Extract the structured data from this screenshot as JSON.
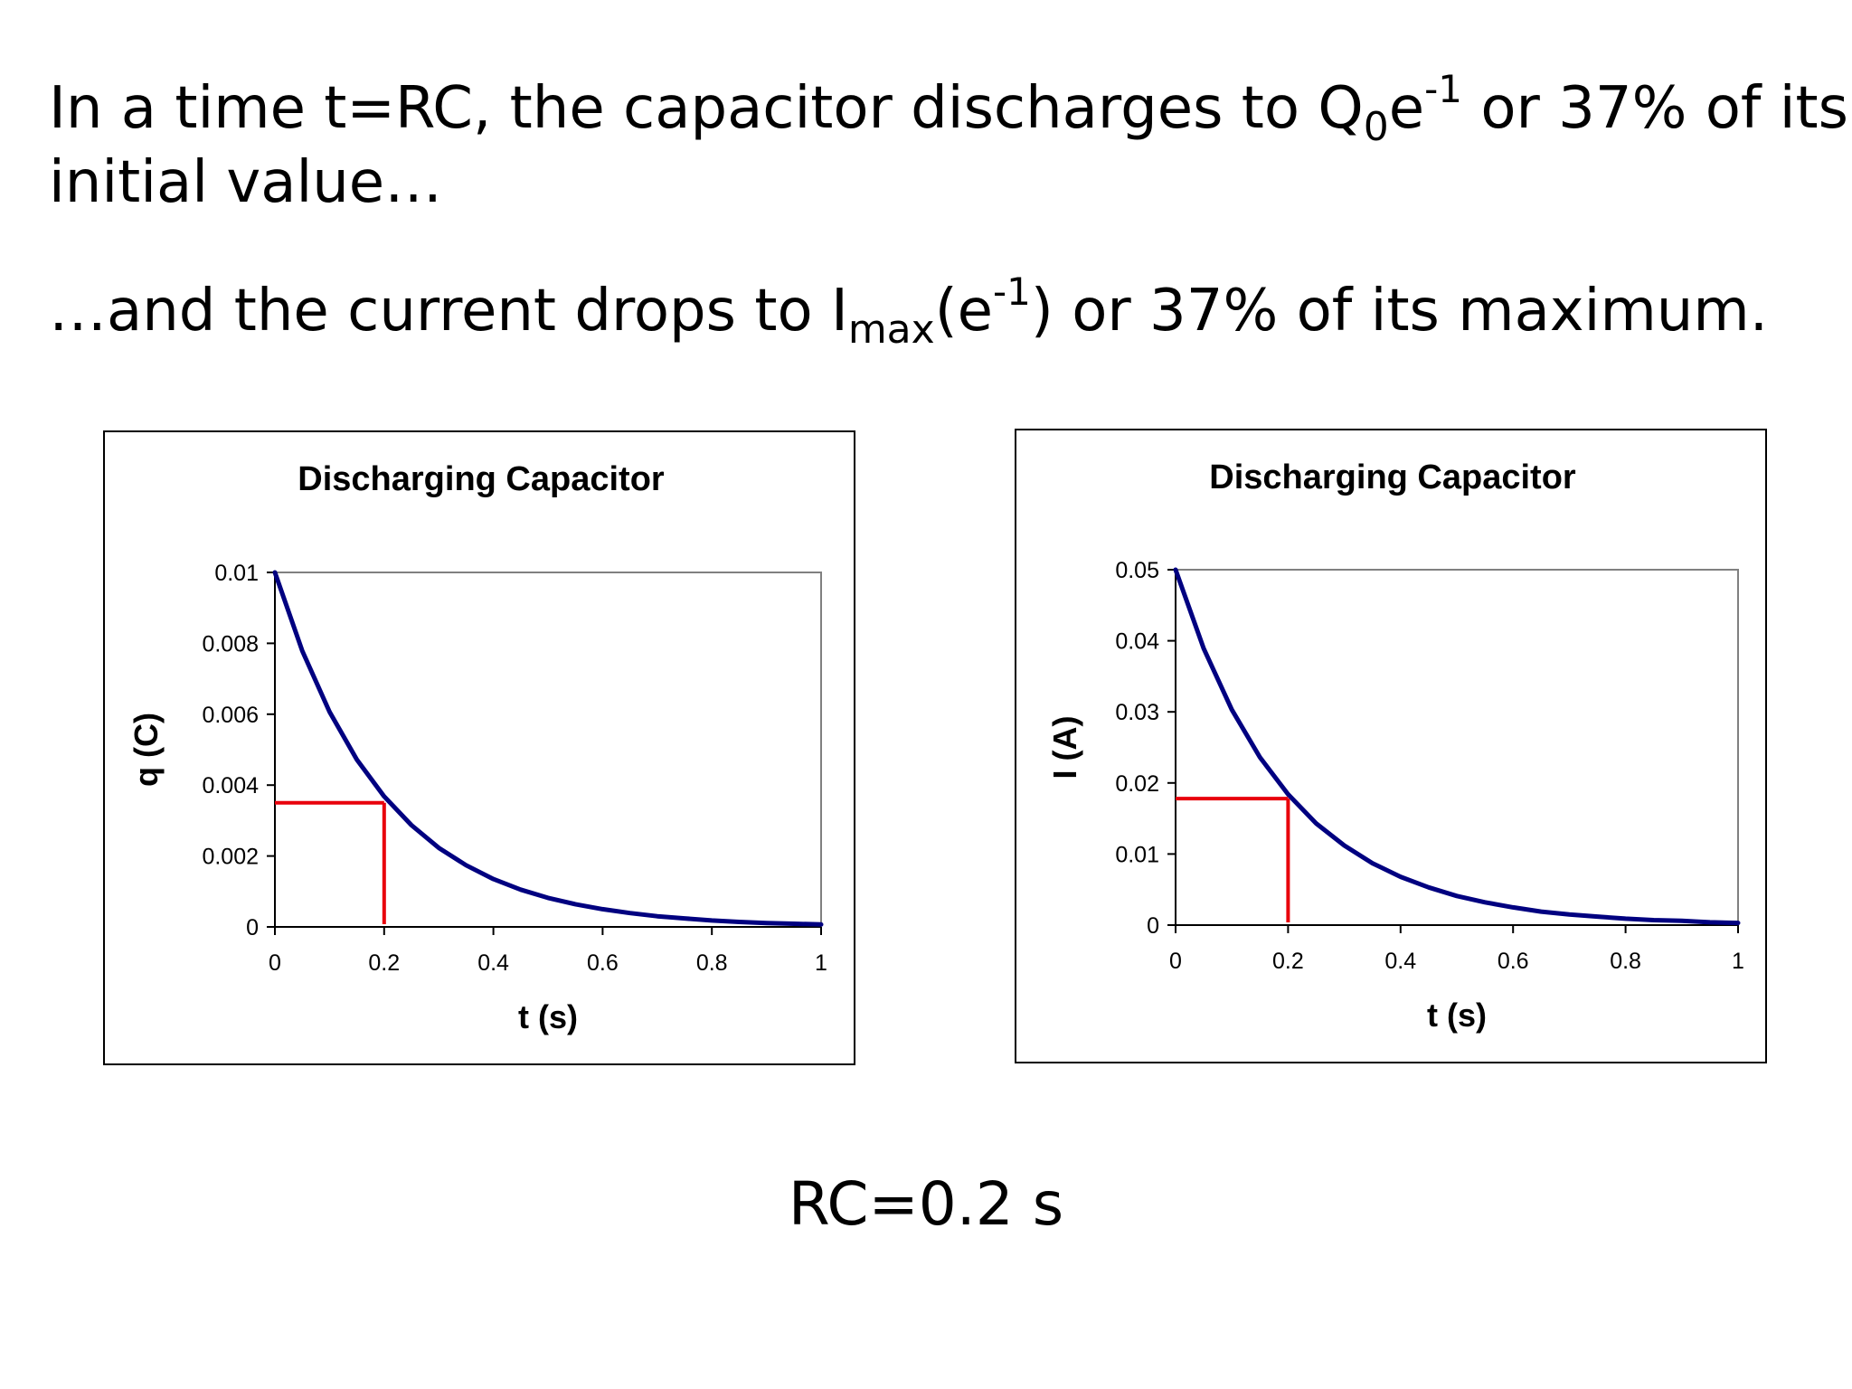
{
  "heading": {
    "line1_a": "In a time t=RC, the capacitor discharges to Q",
    "line1_sub": "0",
    "line1_b": "e",
    "line1_sup": "-1",
    "line1_c": " or 37% of its",
    "line1_d": "initial value…",
    "line2_a": "…and the current drops to I",
    "line2_sub": "max",
    "line2_b": "(e",
    "line2_sup": "-1",
    "line2_c": ") or 37% of its maximum."
  },
  "footer": {
    "rc_text": "RC=0.2 s"
  },
  "colors": {
    "curve": "#000080",
    "marker": "#e8000b",
    "plot_border": "#808080",
    "frame": "#000000"
  },
  "chart_data": [
    {
      "type": "line",
      "title": "Discharging Capacitor",
      "xlabel": "t (s)",
      "ylabel": "q (C)",
      "xlim": [
        0,
        1
      ],
      "ylim": [
        0,
        0.01
      ],
      "xticks": [
        0,
        0.2,
        0.4,
        0.6,
        0.8,
        1
      ],
      "xtick_labels": [
        "0",
        "0.2",
        "0.4",
        "0.6",
        "0.8",
        "1"
      ],
      "yticks": [
        0,
        0.002,
        0.004,
        0.006,
        0.008,
        0.01
      ],
      "ytick_labels": [
        "0",
        "0.002",
        "0.004",
        "0.006",
        "0.008",
        "0.01"
      ],
      "grid": false,
      "series": [
        {
          "x": [
            0,
            0.05,
            0.1,
            0.15,
            0.2,
            0.25,
            0.3,
            0.35,
            0.4,
            0.45,
            0.5,
            0.55,
            0.6,
            0.65,
            0.7,
            0.75,
            0.8,
            0.85,
            0.9,
            0.95,
            1.0
          ],
          "y": [
            0.01,
            0.00779,
            0.00607,
            0.00472,
            0.00368,
            0.00287,
            0.00223,
            0.00174,
            0.00135,
            0.00105,
            0.00082,
            0.00064,
            0.0005,
            0.00039,
            0.0003,
            0.00024,
            0.00018,
            0.00014,
            0.00011,
            9e-05,
            7e-05
          ]
        }
      ],
      "marker_point": {
        "x": 0.2,
        "y": 0.0035
      }
    },
    {
      "type": "line",
      "title": "Discharging Capacitor",
      "xlabel": "t (s)",
      "ylabel": "I (A)",
      "xlim": [
        0,
        1
      ],
      "ylim": [
        0,
        0.05
      ],
      "xticks": [
        0,
        0.2,
        0.4,
        0.6,
        0.8,
        1
      ],
      "xtick_labels": [
        "0",
        "0.2",
        "0.4",
        "0.6",
        "0.8",
        "1"
      ],
      "yticks": [
        0,
        0.01,
        0.02,
        0.03,
        0.04,
        0.05
      ],
      "ytick_labels": [
        "0",
        "0.01",
        "0.02",
        "0.03",
        "0.04",
        "0.05"
      ],
      "grid": false,
      "series": [
        {
          "x": [
            0,
            0.05,
            0.1,
            0.15,
            0.2,
            0.25,
            0.3,
            0.35,
            0.4,
            0.45,
            0.5,
            0.55,
            0.6,
            0.65,
            0.7,
            0.75,
            0.8,
            0.85,
            0.9,
            0.95,
            1.0
          ],
          "y": [
            0.05,
            0.0389,
            0.0303,
            0.0236,
            0.0184,
            0.0143,
            0.0112,
            0.0087,
            0.0068,
            0.0053,
            0.0041,
            0.0032,
            0.0025,
            0.0019,
            0.0015,
            0.0012,
            0.0009,
            0.0007,
            0.0006,
            0.0004,
            0.0003
          ]
        }
      ],
      "marker_point": {
        "x": 0.2,
        "y": 0.0178
      }
    }
  ]
}
